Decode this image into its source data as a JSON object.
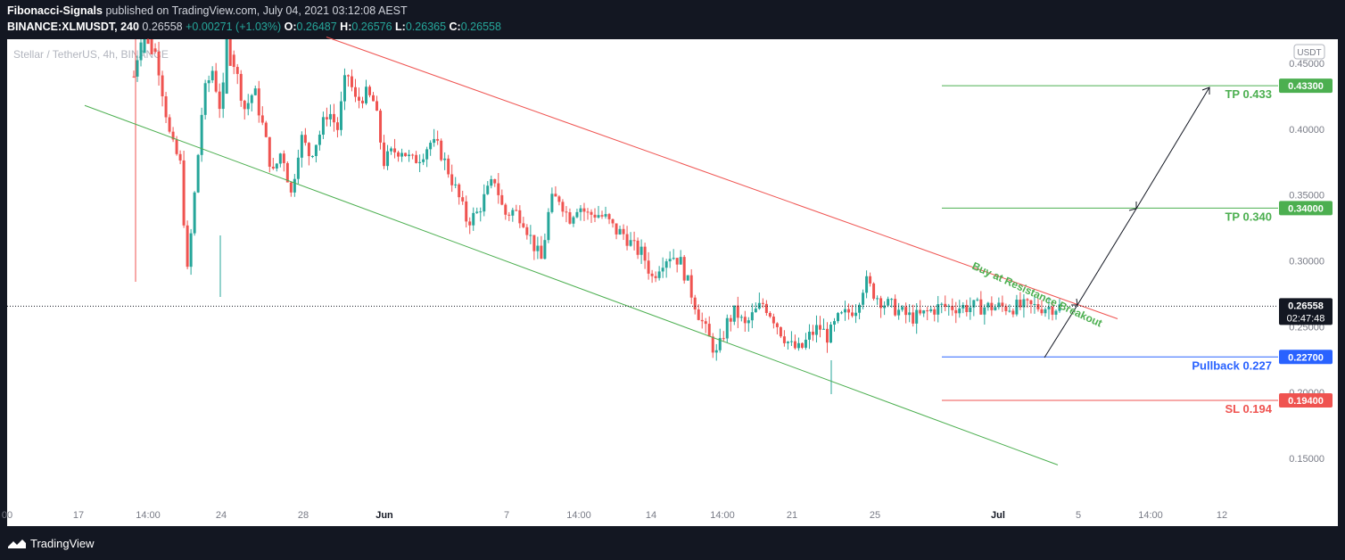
{
  "header": {
    "line1": {
      "author": "Fibonacci-Signals",
      "rest": "published on TradingView.com, July 04, 2021 03:12:08 AEST"
    },
    "line2": {
      "symbol": "BINANCE:XLMUSDT, 240",
      "price": "0.26558",
      "change": "+0.00271 (+1.03%)",
      "o_label": "O:",
      "o": "0.26487",
      "h_label": "H:",
      "h": "0.26576",
      "l_label": "L:",
      "l": "0.26365",
      "c_label": "C:",
      "c": "0.26558"
    }
  },
  "watermark": "Stellar / TetherUS, 4h, BINANCE",
  "currency_badge": "USDT",
  "footer": {
    "brand": "TradingView"
  },
  "colors": {
    "up": "#26a69a",
    "down": "#ef5350",
    "channel_top": "#ef5350",
    "channel_bottom": "#4caf50",
    "tp": "#4caf50",
    "pullback": "#2962ff",
    "sl": "#ef5350",
    "bg": "#ffffff",
    "frame": "#131722"
  },
  "chart_data": {
    "type": "candlestick",
    "symbol": "XLMUSDT",
    "interval": "4h",
    "y_axis": {
      "ticks": [
        "0.15000",
        "0.20000",
        "0.25000",
        "0.30000",
        "0.35000",
        "0.40000",
        "0.45000"
      ],
      "range": [
        0.12,
        0.47
      ]
    },
    "x_axis": {
      "ticks": [
        "00",
        "17",
        "14:00",
        "24",
        "28",
        "Jun",
        "7",
        "14:00",
        "14",
        "14:00",
        "21",
        "25",
        "Jul",
        "5",
        "14:00",
        "12"
      ]
    },
    "current_price": {
      "label": "0.26558",
      "countdown": "02:47:48",
      "value": 0.26558
    },
    "levels": [
      {
        "name": "TP 0.433",
        "value": 0.433,
        "badge": "0.43300",
        "kind": "tp"
      },
      {
        "name": "TP 0.340",
        "value": 0.34,
        "badge": "0.34000",
        "kind": "tp"
      },
      {
        "name": "Pullback 0.227",
        "value": 0.227,
        "badge": "0.22700",
        "kind": "pullback"
      },
      {
        "name": "SL 0.194",
        "value": 0.194,
        "badge": "0.19400",
        "kind": "sl"
      }
    ],
    "annotation": "Buy at Resistance Breakout",
    "channel": {
      "upper": [
        {
          "date": "May 27",
          "value": 0.47
        },
        {
          "date": "Jul 08",
          "value": 0.256
        }
      ],
      "lower": [
        {
          "date": "May 14",
          "value": 0.418
        },
        {
          "date": "Jul 06",
          "value": 0.145
        }
      ]
    },
    "price_path": [
      [
        0.0,
        0.44
      ],
      [
        0.01,
        0.48
      ],
      [
        0.025,
        0.455
      ],
      [
        0.04,
        0.39
      ],
      [
        0.05,
        0.375
      ],
      [
        0.058,
        0.29
      ],
      [
        0.065,
        0.345
      ],
      [
        0.075,
        0.425
      ],
      [
        0.085,
        0.445
      ],
      [
        0.095,
        0.41
      ],
      [
        0.1,
        0.475
      ],
      [
        0.11,
        0.445
      ],
      [
        0.12,
        0.415
      ],
      [
        0.13,
        0.43
      ],
      [
        0.14,
        0.4
      ],
      [
        0.15,
        0.365
      ],
      [
        0.16,
        0.385
      ],
      [
        0.17,
        0.35
      ],
      [
        0.18,
        0.395
      ],
      [
        0.19,
        0.38
      ],
      [
        0.2,
        0.395
      ],
      [
        0.21,
        0.415
      ],
      [
        0.22,
        0.4
      ],
      [
        0.23,
        0.445
      ],
      [
        0.24,
        0.42
      ],
      [
        0.25,
        0.427
      ],
      [
        0.26,
        0.42
      ],
      [
        0.27,
        0.375
      ],
      [
        0.28,
        0.383
      ],
      [
        0.29,
        0.385
      ],
      [
        0.3,
        0.375
      ],
      [
        0.31,
        0.38
      ],
      [
        0.32,
        0.39
      ],
      [
        0.33,
        0.385
      ],
      [
        0.34,
        0.368
      ],
      [
        0.35,
        0.35
      ],
      [
        0.36,
        0.33
      ],
      [
        0.37,
        0.335
      ],
      [
        0.38,
        0.35
      ],
      [
        0.39,
        0.362
      ],
      [
        0.4,
        0.335
      ],
      [
        0.41,
        0.338
      ],
      [
        0.42,
        0.333
      ],
      [
        0.43,
        0.315
      ],
      [
        0.44,
        0.3
      ],
      [
        0.45,
        0.345
      ],
      [
        0.46,
        0.348
      ],
      [
        0.47,
        0.332
      ],
      [
        0.48,
        0.343
      ],
      [
        0.49,
        0.335
      ],
      [
        0.5,
        0.336
      ],
      [
        0.51,
        0.332
      ],
      [
        0.52,
        0.323
      ],
      [
        0.53,
        0.32
      ],
      [
        0.54,
        0.31
      ],
      [
        0.55,
        0.305
      ],
      [
        0.56,
        0.287
      ],
      [
        0.57,
        0.3
      ],
      [
        0.58,
        0.305
      ],
      [
        0.59,
        0.3
      ],
      [
        0.6,
        0.28
      ],
      [
        0.61,
        0.26
      ],
      [
        0.62,
        0.243
      ],
      [
        0.63,
        0.228
      ],
      [
        0.64,
        0.252
      ],
      [
        0.65,
        0.262
      ],
      [
        0.66,
        0.25
      ],
      [
        0.67,
        0.26
      ],
      [
        0.68,
        0.268
      ],
      [
        0.69,
        0.258
      ],
      [
        0.7,
        0.245
      ],
      [
        0.71,
        0.235
      ],
      [
        0.72,
        0.232
      ],
      [
        0.73,
        0.243
      ],
      [
        0.74,
        0.25
      ],
      [
        0.75,
        0.242
      ],
      [
        0.76,
        0.255
      ],
      [
        0.77,
        0.26
      ],
      [
        0.78,
        0.265
      ],
      [
        0.79,
        0.285
      ],
      [
        0.8,
        0.275
      ],
      [
        0.81,
        0.268
      ],
      [
        0.82,
        0.265
      ],
      [
        0.83,
        0.26
      ],
      [
        0.84,
        0.257
      ],
      [
        0.85,
        0.258
      ],
      [
        0.86,
        0.262
      ],
      [
        0.87,
        0.265
      ]
    ]
  }
}
